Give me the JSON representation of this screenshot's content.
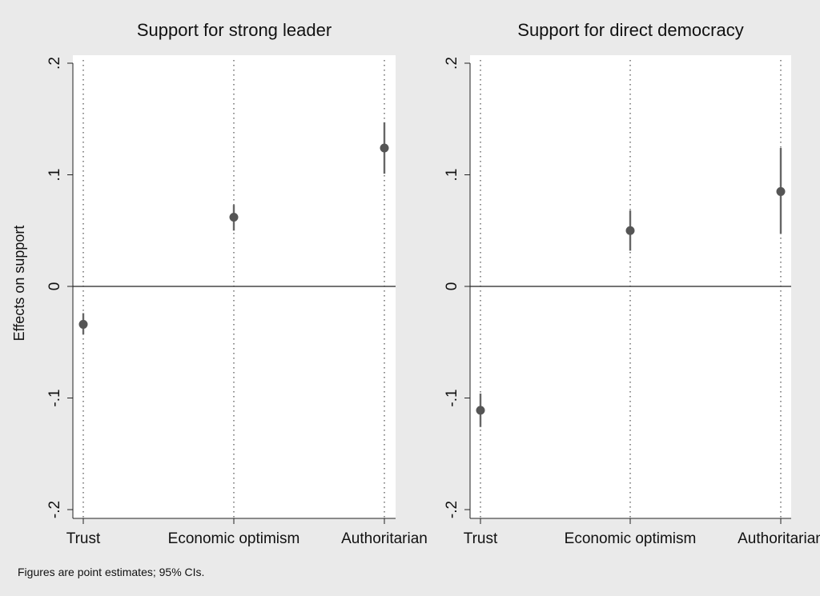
{
  "chart_data": [
    {
      "type": "scatter",
      "title": "Support for strong leader",
      "ylabel": "Effects on support",
      "categories": [
        "Trust",
        "Economic optimism",
        "Authoritarian"
      ],
      "ylim": [
        -0.2,
        0.2
      ],
      "yticks": [
        ".2",
        ".1",
        "0",
        "-.1",
        "-.2"
      ],
      "estimates": [
        -0.034,
        0.062,
        0.124
      ],
      "ci_low": [
        -0.043,
        0.05,
        0.101
      ],
      "ci_high": [
        -0.024,
        0.073,
        0.147
      ],
      "grid": "dotted vertical at categories",
      "zero_line": true
    },
    {
      "type": "scatter",
      "title": "Support for direct democracy",
      "ylabel": "",
      "categories": [
        "Trust",
        "Economic optimism",
        "Authoritarian"
      ],
      "ylim": [
        -0.2,
        0.2
      ],
      "yticks": [
        ".2",
        ".1",
        "0",
        "-.1",
        "-.2"
      ],
      "estimates": [
        -0.111,
        0.05,
        0.085
      ],
      "ci_low": [
        -0.126,
        0.032,
        0.047
      ],
      "ci_high": [
        -0.096,
        0.068,
        0.124
      ],
      "grid": "dotted vertical at categories",
      "zero_line": true
    }
  ],
  "note": "Figures are point estimates; 95% CIs.",
  "colors": {
    "background": "#eaeaea",
    "plot_area": "#ffffff",
    "marker": "#555555",
    "ci_line": "#666666",
    "grid": "#222222"
  }
}
